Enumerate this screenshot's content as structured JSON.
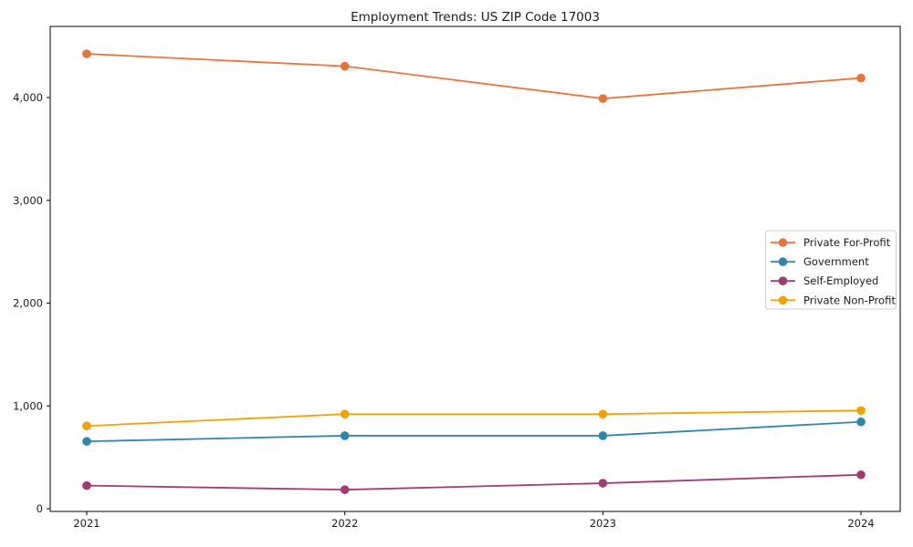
{
  "page": {
    "background": "#ffffff",
    "axis_color": "#000000",
    "text_color": "#1a1a1a",
    "legend_border_color": "#cccccc",
    "legend_background": "#ffffff"
  },
  "chart_data": {
    "type": "line",
    "title": "Employment Trends: US ZIP Code 17003",
    "x_labels": [
      "2021",
      "2022",
      "2023",
      "2024"
    ],
    "series": [
      {
        "name": "Private For-Profit",
        "color": "#E8743B",
        "values": [
          4425,
          4305,
          3990,
          4190
        ]
      },
      {
        "name": "Government",
        "color": "#2E86AB",
        "values": [
          655,
          710,
          710,
          845
        ]
      },
      {
        "name": "Self-Employed",
        "color": "#A23B72",
        "values": [
          225,
          185,
          248,
          330
        ]
      },
      {
        "name": "Private Non-Profit",
        "color": "#F2A104",
        "values": [
          805,
          920,
          920,
          955
        ]
      }
    ],
    "yticks": [
      0,
      1000,
      2000,
      3000,
      4000
    ],
    "ytick_labels": [
      "0",
      "1,000",
      "2,000",
      "3,000",
      "4,000"
    ],
    "ylim": [
      -30,
      4690
    ],
    "grid": false,
    "legend_position": "center-right",
    "marker": "circle"
  }
}
